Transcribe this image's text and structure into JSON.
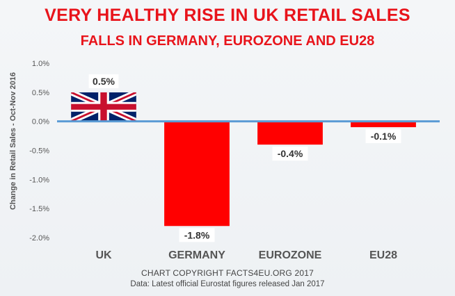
{
  "chart_data": {
    "type": "bar",
    "title": "VERY HEALTHY RISE IN UK RETAIL SALES",
    "subtitle": "FALLS IN GERMANY, EUROZONE AND EU28",
    "ylabel": "Change in Retail Sales - Oct-Nov 2016",
    "categories": [
      "UK",
      "GERMANY",
      "EUROZONE",
      "EU28"
    ],
    "values": [
      0.5,
      -1.8,
      -0.4,
      -0.1
    ],
    "data_labels": [
      "0.5%",
      "-1.8%",
      "-0.4%",
      "-0.1%"
    ],
    "yticks": [
      1.0,
      0.5,
      0.0,
      -0.5,
      -1.0,
      -1.5,
      -2.0
    ],
    "ytick_labels": [
      "1.0%",
      "0.5%",
      "0.0%",
      "-0.5%",
      "-1.0%",
      "-1.5%",
      "-2.0%"
    ],
    "ylim": [
      -2.0,
      1.0
    ],
    "grid": false,
    "colors": {
      "bar": "#ff0000",
      "zero_line": "#5b9bd5",
      "title": "#e8141b",
      "flag_blue": "#012169",
      "flag_red": "#c8102e"
    },
    "uk_bar_fill": "union-jack-flag"
  },
  "footer": {
    "copyright": "CHART COPYRIGHT FACTS4EU.ORG 2017",
    "source": "Data: Latest official Eurostat figures released Jan 2017"
  }
}
